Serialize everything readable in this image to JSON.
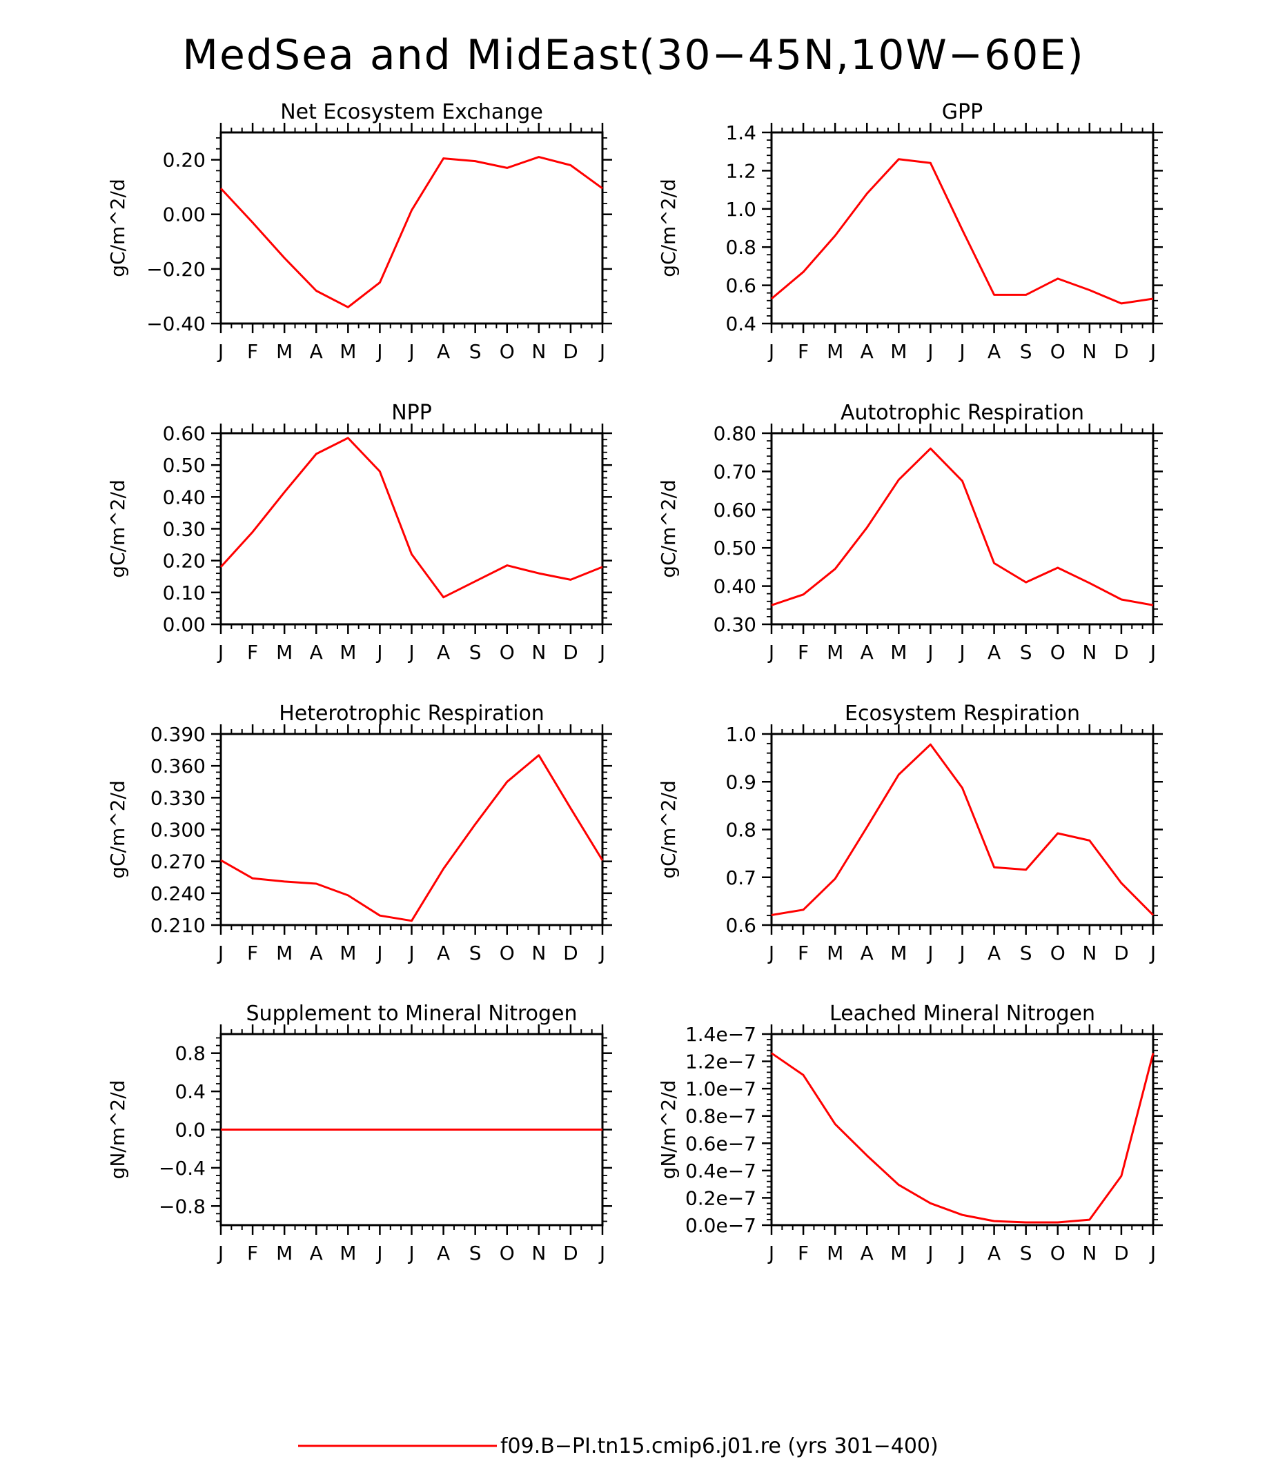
{
  "figure": {
    "title": "MedSea and MidEast(30−45N,10W−60E)",
    "line_color": "#ff0000",
    "legend": {
      "label": "f09.B−PI.tn15.cmip6.j01.re (yrs 301−400)",
      "color": "#ff0000"
    }
  },
  "chart_data": [
    {
      "type": "line",
      "title": "Net Ecosystem Exchange",
      "ylabel": "gC/m^2/d",
      "x": [
        "J",
        "F",
        "M",
        "A",
        "M",
        "J",
        "J",
        "A",
        "S",
        "O",
        "N",
        "D",
        "J"
      ],
      "ylim": [
        -0.4,
        0.3
      ],
      "yticks": [
        "−0.40",
        "−0.20",
        "0.00",
        "0.20"
      ],
      "yticks_values": [
        -0.4,
        -0.2,
        0.0,
        0.2
      ],
      "series": [
        {
          "values": [
            0.095,
            -0.03,
            -0.16,
            -0.28,
            -0.34,
            -0.25,
            0.015,
            0.205,
            0.195,
            0.17,
            0.21,
            0.18,
            0.095
          ]
        }
      ]
    },
    {
      "type": "line",
      "title": "GPP",
      "ylabel": "gC/m^2/d",
      "x": [
        "J",
        "F",
        "M",
        "A",
        "M",
        "J",
        "J",
        "A",
        "S",
        "O",
        "N",
        "D",
        "J"
      ],
      "ylim": [
        0.4,
        1.4
      ],
      "yticks": [
        "0.4",
        "0.6",
        "0.8",
        "1.0",
        "1.2",
        "1.4"
      ],
      "yticks_values": [
        0.4,
        0.6,
        0.8,
        1.0,
        1.2,
        1.4
      ],
      "series": [
        {
          "values": [
            0.53,
            0.67,
            0.86,
            1.08,
            1.26,
            1.24,
            0.89,
            0.55,
            0.55,
            0.635,
            0.575,
            0.505,
            0.53
          ]
        }
      ]
    },
    {
      "type": "line",
      "title": "NPP",
      "ylabel": "gC/m^2/d",
      "x": [
        "J",
        "F",
        "M",
        "A",
        "M",
        "J",
        "J",
        "A",
        "S",
        "O",
        "N",
        "D",
        "J"
      ],
      "ylim": [
        0.0,
        0.6
      ],
      "yticks": [
        "0.00",
        "0.10",
        "0.20",
        "0.30",
        "0.40",
        "0.50",
        "0.60"
      ],
      "yticks_values": [
        0.0,
        0.1,
        0.2,
        0.3,
        0.4,
        0.5,
        0.6
      ],
      "series": [
        {
          "values": [
            0.18,
            0.29,
            0.415,
            0.535,
            0.585,
            0.48,
            0.22,
            0.085,
            0.135,
            0.185,
            0.16,
            0.14,
            0.18
          ]
        }
      ]
    },
    {
      "type": "line",
      "title": "Autotrophic Respiration",
      "ylabel": "gC/m^2/d",
      "x": [
        "J",
        "F",
        "M",
        "A",
        "M",
        "J",
        "J",
        "A",
        "S",
        "O",
        "N",
        "D",
        "J"
      ],
      "ylim": [
        0.3,
        0.8
      ],
      "yticks": [
        "0.30",
        "0.40",
        "0.50",
        "0.60",
        "0.70",
        "0.80"
      ],
      "yticks_values": [
        0.3,
        0.4,
        0.5,
        0.6,
        0.7,
        0.8
      ],
      "series": [
        {
          "values": [
            0.35,
            0.378,
            0.445,
            0.553,
            0.678,
            0.76,
            0.675,
            0.46,
            0.41,
            0.448,
            0.408,
            0.365,
            0.35
          ]
        }
      ]
    },
    {
      "type": "line",
      "title": "Heterotrophic Respiration",
      "ylabel": "gC/m^2/d",
      "x": [
        "J",
        "F",
        "M",
        "A",
        "M",
        "J",
        "J",
        "A",
        "S",
        "O",
        "N",
        "D",
        "J"
      ],
      "ylim": [
        0.21,
        0.39
      ],
      "yticks": [
        "0.210",
        "0.240",
        "0.270",
        "0.300",
        "0.330",
        "0.360",
        "0.390"
      ],
      "yticks_values": [
        0.21,
        0.24,
        0.27,
        0.3,
        0.33,
        0.36,
        0.39
      ],
      "series": [
        {
          "values": [
            0.271,
            0.254,
            0.251,
            0.249,
            0.238,
            0.219,
            0.214,
            0.263,
            0.305,
            0.345,
            0.37,
            0.32,
            0.271
          ]
        }
      ]
    },
    {
      "type": "line",
      "title": "Ecosystem Respiration",
      "ylabel": "gC/m^2/d",
      "x": [
        "J",
        "F",
        "M",
        "A",
        "M",
        "J",
        "J",
        "A",
        "S",
        "O",
        "N",
        "D",
        "J"
      ],
      "ylim": [
        0.6,
        1.0
      ],
      "yticks": [
        "0.6",
        "0.7",
        "0.8",
        "0.9",
        "1.0"
      ],
      "yticks_values": [
        0.6,
        0.7,
        0.8,
        0.9,
        1.0
      ],
      "series": [
        {
          "values": [
            0.621,
            0.632,
            0.697,
            0.805,
            0.915,
            0.978,
            0.887,
            0.721,
            0.716,
            0.792,
            0.777,
            0.688,
            0.621
          ]
        }
      ]
    },
    {
      "type": "line",
      "title": "Supplement to Mineral Nitrogen",
      "ylabel": "gN/m^2/d",
      "x": [
        "J",
        "F",
        "M",
        "A",
        "M",
        "J",
        "J",
        "A",
        "S",
        "O",
        "N",
        "D",
        "J"
      ],
      "ylim": [
        -1.0,
        1.0
      ],
      "yticks": [
        "−0.8",
        "−0.4",
        "0.0",
        "0.4",
        "0.8"
      ],
      "yticks_values": [
        -0.8,
        -0.4,
        0.0,
        0.4,
        0.8
      ],
      "series": [
        {
          "values": [
            0,
            0,
            0,
            0,
            0,
            0,
            0,
            0,
            0,
            0,
            0,
            0,
            0
          ]
        }
      ]
    },
    {
      "type": "line",
      "title": "Leached Mineral Nitrogen",
      "ylabel": "gN/m^2/d",
      "x": [
        "J",
        "F",
        "M",
        "A",
        "M",
        "J",
        "J",
        "A",
        "S",
        "O",
        "N",
        "D",
        "J"
      ],
      "ylim": [
        0,
        1.4e-07
      ],
      "yticks": [
        "0.0e−7",
        "0.2e−7",
        "0.4e−7",
        "0.6e−7",
        "0.8e−7",
        "1.0e−7",
        "1.2e−7",
        "1.4e−7"
      ],
      "yticks_values": [
        0,
        2e-08,
        4e-08,
        6e-08,
        8e-08,
        1e-07,
        1.2e-07,
        1.4e-07
      ],
      "series": [
        {
          "values": [
            1.26e-07,
            1.1e-07,
            7.4e-08,
            5.1e-08,
            2.95e-08,
            1.6e-08,
            7.5e-09,
            3e-09,
            2e-09,
            2e-09,
            4e-09,
            3.6e-08,
            1.26e-07
          ]
        }
      ]
    }
  ]
}
